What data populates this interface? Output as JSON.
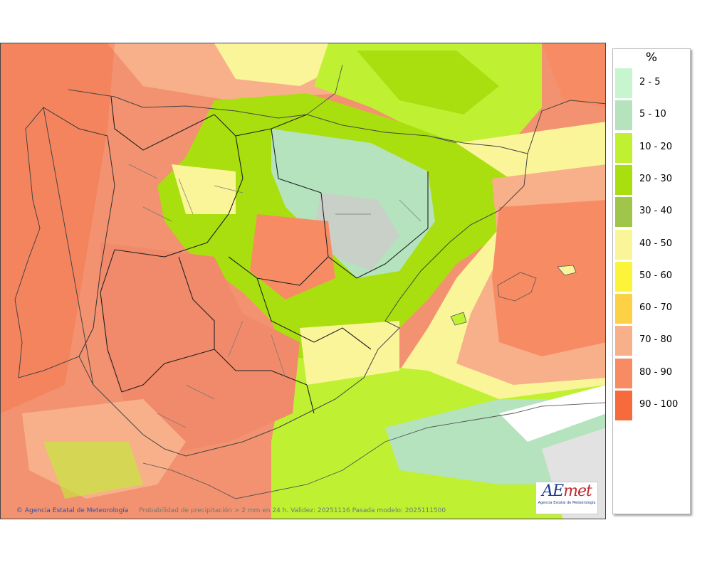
{
  "legend": {
    "unit": "%",
    "items": [
      {
        "label": "2 - 5",
        "color": "#c6f5cf"
      },
      {
        "label": "5 - 10",
        "color": "#b4e3be"
      },
      {
        "label": "10 - 20",
        "color": "#c0f032"
      },
      {
        "label": "20 - 30",
        "color": "#a9df0e"
      },
      {
        "label": "30 - 40",
        "color": "#9fc64a"
      },
      {
        "label": "40 - 50",
        "color": "#fbf59a"
      },
      {
        "label": "50 - 60",
        "color": "#fbf43a"
      },
      {
        "label": "60 - 70",
        "color": "#fcd144"
      },
      {
        "label": "70 - 80",
        "color": "#f8b08a"
      },
      {
        "label": "80 - 90",
        "color": "#f78c64"
      },
      {
        "label": "90 - 100",
        "color": "#f76a3c"
      }
    ]
  },
  "footer": {
    "agency": "Agencia Estatal de Meteorología",
    "description": "Probabilidad de precipitación > 2 mm en 24 h. Validez: 20251116 Pasada modelo: 2025111500"
  },
  "logo": {
    "brand_a": "AE",
    "brand_m": "met",
    "subtitle": "Agencia Estatal de Meteorología"
  }
}
